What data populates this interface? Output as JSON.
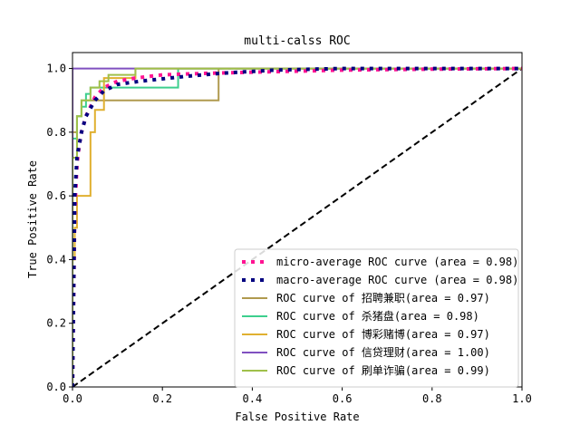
{
  "chart_data": {
    "type": "line",
    "title": "multi-calss ROC",
    "xlabel": "False Positive Rate",
    "ylabel": "True Positive Rate",
    "xlim": [
      0.0,
      1.0
    ],
    "ylim": [
      0.0,
      1.05
    ],
    "xticks": [
      "0.0",
      "0.2",
      "0.4",
      "0.6",
      "0.8",
      "1.0"
    ],
    "yticks": [
      "0.0",
      "0.2",
      "0.4",
      "0.6",
      "0.8",
      "1.0"
    ],
    "grid": false,
    "legend_position": "lower-right",
    "chance_line": {
      "x": [
        0,
        1
      ],
      "y": [
        0,
        1
      ],
      "color": "#000000",
      "style": "dashed"
    },
    "series": [
      {
        "name": "micro-average ROC curve (area = 0.98)",
        "color": "#ff1493",
        "style": "dotted",
        "x": [
          0.0,
          0.005,
          0.01,
          0.015,
          0.02,
          0.03,
          0.04,
          0.05,
          0.07,
          0.1,
          0.14,
          0.2,
          0.3,
          0.45,
          0.6,
          0.8,
          1.0
        ],
        "y": [
          0.0,
          0.55,
          0.7,
          0.76,
          0.8,
          0.85,
          0.88,
          0.91,
          0.94,
          0.96,
          0.97,
          0.98,
          0.985,
          0.99,
          0.995,
          0.998,
          1.0
        ]
      },
      {
        "name": "macro-average ROC curve (area = 0.98)",
        "color": "#000080",
        "style": "dotted",
        "x": [
          0.0,
          0.005,
          0.01,
          0.02,
          0.03,
          0.05,
          0.07,
          0.1,
          0.15,
          0.25,
          0.33,
          0.45,
          0.6,
          0.8,
          1.0
        ],
        "y": [
          0.0,
          0.6,
          0.72,
          0.8,
          0.85,
          0.9,
          0.93,
          0.95,
          0.96,
          0.975,
          0.985,
          0.995,
          1.0,
          1.0,
          1.0
        ]
      },
      {
        "name": "ROC curve of 招聘兼职(area = 0.97)",
        "color": "#b09a4f",
        "style": "solid",
        "x": [
          0.0,
          0.0,
          0.01,
          0.01,
          0.02,
          0.02,
          0.04,
          0.04,
          0.325,
          0.325,
          1.0
        ],
        "y": [
          0.0,
          0.8,
          0.8,
          0.85,
          0.85,
          0.9,
          0.9,
          0.9,
          0.9,
          1.0,
          1.0
        ]
      },
      {
        "name": "ROC curve of 杀猪盘(area = 0.98)",
        "color": "#3dcf8e",
        "style": "solid",
        "x": [
          0.0,
          0.0,
          0.01,
          0.01,
          0.02,
          0.02,
          0.03,
          0.03,
          0.04,
          0.04,
          0.06,
          0.06,
          0.235,
          0.235,
          1.0
        ],
        "y": [
          0.0,
          0.78,
          0.78,
          0.85,
          0.85,
          0.88,
          0.88,
          0.92,
          0.92,
          0.94,
          0.94,
          0.94,
          0.94,
          1.0,
          1.0
        ]
      },
      {
        "name": "ROC curve of 博彩赌博(area = 0.97)",
        "color": "#e0b030",
        "style": "solid",
        "x": [
          0.0,
          0.0,
          0.005,
          0.005,
          0.01,
          0.01,
          0.02,
          0.02,
          0.04,
          0.04,
          0.05,
          0.05,
          0.07,
          0.07,
          0.14,
          0.14,
          1.0
        ],
        "y": [
          0.0,
          0.4,
          0.4,
          0.5,
          0.5,
          0.6,
          0.6,
          0.6,
          0.6,
          0.8,
          0.8,
          0.87,
          0.87,
          0.97,
          0.97,
          1.0,
          1.0
        ]
      },
      {
        "name": "ROC curve of 信贷理财(area = 1.00)",
        "color": "#8050c0",
        "style": "solid",
        "x": [
          0.0,
          0.0,
          1.0
        ],
        "y": [
          0.0,
          1.0,
          1.0
        ]
      },
      {
        "name": "ROC curve of 刷单诈骗(area = 0.99)",
        "color": "#a0c04a",
        "style": "solid",
        "x": [
          0.0,
          0.0,
          0.01,
          0.01,
          0.02,
          0.02,
          0.04,
          0.04,
          0.06,
          0.06,
          0.08,
          0.08,
          0.14,
          0.14,
          1.0
        ],
        "y": [
          0.0,
          0.72,
          0.72,
          0.85,
          0.85,
          0.9,
          0.9,
          0.94,
          0.94,
          0.96,
          0.96,
          0.98,
          0.98,
          1.0,
          1.0
        ]
      }
    ]
  }
}
